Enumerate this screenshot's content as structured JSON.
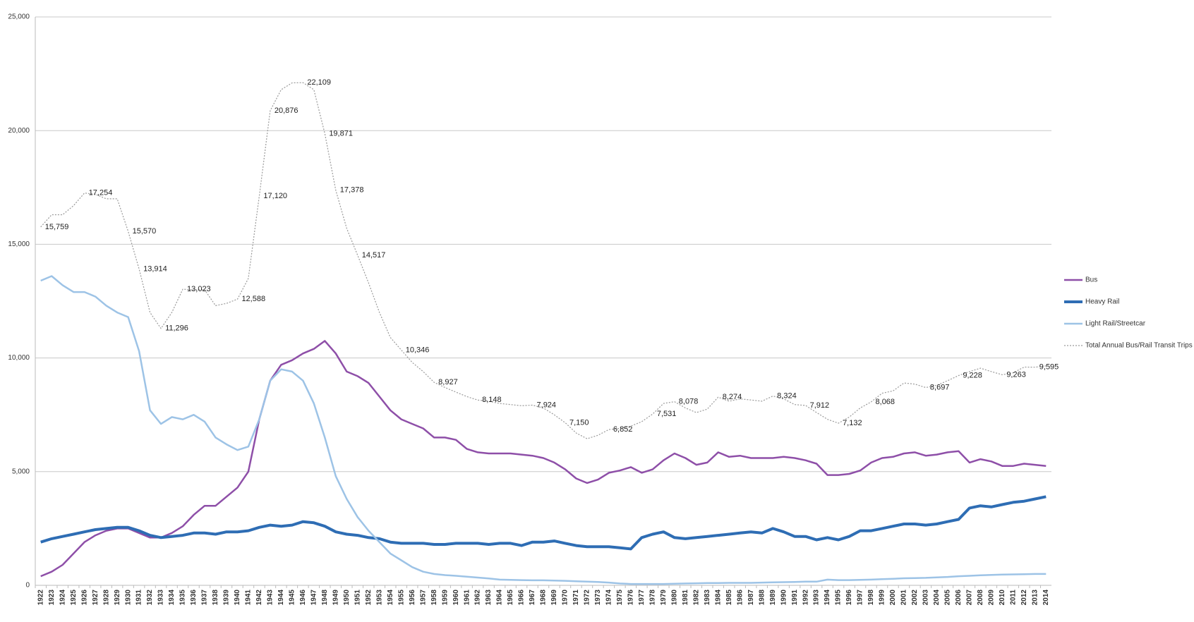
{
  "chart_data": {
    "type": "line",
    "grid": true,
    "legend": "right",
    "categories": [
      "1922",
      "1923",
      "1924",
      "1925",
      "1926",
      "1927",
      "1928",
      "1929",
      "1930",
      "1931",
      "1932",
      "1933",
      "1934",
      "1935",
      "1936",
      "1937",
      "1938",
      "1939",
      "1940",
      "1941",
      "1942",
      "1943",
      "1944",
      "1945",
      "1946",
      "1947",
      "1948",
      "1949",
      "1950",
      "1951",
      "1952",
      "1953",
      "1954",
      "1955",
      "1956",
      "1957",
      "1958",
      "1959",
      "1960",
      "1961",
      "1962",
      "1963",
      "1964",
      "1965",
      "1966",
      "1967",
      "1968",
      "1969",
      "1970",
      "1971",
      "1972",
      "1973",
      "1974",
      "1975",
      "1976",
      "1977",
      "1978",
      "1979",
      "1980",
      "1981",
      "1982",
      "1983",
      "1984",
      "1985",
      "1986",
      "1987",
      "1988",
      "1989",
      "1990",
      "1991",
      "1992",
      "1993",
      "1994",
      "1995",
      "1996",
      "1997",
      "1998",
      "1999",
      "2000",
      "2001",
      "2002",
      "2003",
      "2004",
      "2005",
      "2006",
      "2007",
      "2008",
      "2009",
      "2010",
      "2011",
      "2012",
      "2013",
      "2014"
    ],
    "ylim": [
      0,
      25000
    ],
    "yticks": [
      0,
      {
        "value": 5000,
        "label": "5,000"
      },
      {
        "value": 10000,
        "label": "10,000"
      },
      {
        "value": 15000,
        "label": "15,000"
      },
      {
        "value": 20000,
        "label": "20,000"
      },
      {
        "value": 25000,
        "label": "25,000"
      }
    ],
    "series": [
      {
        "name": "Bus",
        "color": "#8e4fa8",
        "style": "solid",
        "values": [
          400,
          600,
          900,
          1400,
          1900,
          2200,
          2400,
          2500,
          2500,
          2300,
          2100,
          2100,
          2300,
          2600,
          3100,
          3500,
          3500,
          3900,
          4300,
          5000,
          7300,
          9000,
          9700,
          9900,
          10200,
          10400,
          10750,
          10200,
          9400,
          9200,
          8900,
          8300,
          7700,
          7300,
          7100,
          6900,
          6500,
          6500,
          6400,
          6000,
          5850,
          5800,
          5800,
          5800,
          5750,
          5700,
          5600,
          5400,
          5100,
          4700,
          4500,
          4650,
          4950,
          5050,
          5200,
          4950,
          5100,
          5500,
          5800,
          5600,
          5300,
          5400,
          5850,
          5650,
          5700,
          5600,
          5600,
          5600,
          5650,
          5600,
          5500,
          5350,
          4850,
          4850,
          4900,
          5050,
          5400,
          5600,
          5650,
          5800,
          5850,
          5700,
          5750,
          5850,
          5900,
          5400,
          5550,
          5450,
          5250,
          5250,
          5350,
          5300,
          5250
        ]
      },
      {
        "name": "Heavy Rail",
        "color": "#2e6db4",
        "style": "thick",
        "values": [
          1900,
          2050,
          2150,
          2250,
          2350,
          2450,
          2500,
          2550,
          2550,
          2400,
          2200,
          2100,
          2150,
          2200,
          2300,
          2300,
          2250,
          2350,
          2350,
          2400,
          2550,
          2650,
          2600,
          2650,
          2800,
          2750,
          2600,
          2350,
          2250,
          2200,
          2100,
          2050,
          1900,
          1850,
          1850,
          1850,
          1800,
          1800,
          1850,
          1850,
          1850,
          1800,
          1850,
          1850,
          1750,
          1900,
          1900,
          1950,
          1850,
          1750,
          1700,
          1700,
          1700,
          1650,
          1600,
          2100,
          2250,
          2350,
          2100,
          2050,
          2100,
          2150,
          2200,
          2250,
          2300,
          2350,
          2300,
          2500,
          2350,
          2150,
          2150,
          2000,
          2100,
          2000,
          2150,
          2400,
          2400,
          2500,
          2600,
          2700,
          2700,
          2650,
          2700,
          2800,
          2900,
          3400,
          3500,
          3450,
          3550,
          3650,
          3700,
          3800,
          3900
        ]
      },
      {
        "name": "Light Rail/Streetcar",
        "color": "#9dc3e6",
        "style": "solid",
        "values": [
          13400,
          13600,
          13200,
          12900,
          12900,
          12700,
          12300,
          12000,
          11800,
          10300,
          7700,
          7100,
          7400,
          7300,
          7500,
          7200,
          6500,
          6200,
          5950,
          6100,
          7300,
          9000,
          9500,
          9400,
          9000,
          8000,
          6500,
          4800,
          3800,
          3000,
          2400,
          1900,
          1400,
          1100,
          800,
          600,
          500,
          450,
          420,
          380,
          340,
          300,
          250,
          240,
          230,
          220,
          220,
          210,
          200,
          180,
          160,
          150,
          120,
          80,
          60,
          60,
          60,
          60,
          70,
          80,
          90,
          100,
          100,
          110,
          110,
          110,
          120,
          130,
          140,
          150,
          160,
          160,
          250,
          230,
          230,
          240,
          250,
          270,
          290,
          310,
          320,
          330,
          350,
          370,
          400,
          420,
          440,
          460,
          470,
          480,
          490,
          500,
          500
        ]
      },
      {
        "name": "Total Annual Bus/Rail Transit Trips",
        "color": "#9a9a9a",
        "style": "dotted",
        "values": [
          15759,
          16300,
          16300,
          16700,
          17254,
          17200,
          17000,
          17000,
          15570,
          13914,
          12000,
          11296,
          12000,
          13023,
          13000,
          13000,
          12300,
          12400,
          12588,
          13500,
          17120,
          20876,
          21800,
          22100,
          22109,
          21800,
          19871,
          17378,
          15700,
          14517,
          13300,
          12000,
          10900,
          10346,
          9800,
          9400,
          8927,
          8700,
          8500,
          8300,
          8148,
          8100,
          8000,
          7950,
          7900,
          7924,
          7800,
          7500,
          7150,
          6700,
          6450,
          6600,
          6852,
          6900,
          7000,
          7200,
          7531,
          8000,
          8078,
          7800,
          7600,
          7750,
          8274,
          8100,
          8200,
          8150,
          8100,
          8324,
          8200,
          7950,
          7912,
          7600,
          7300,
          7132,
          7400,
          7800,
          8068,
          8450,
          8550,
          8900,
          8850,
          8697,
          8800,
          9000,
          9228,
          9400,
          9550,
          9400,
          9263,
          9350,
          9600,
          9595,
          9650
        ],
        "value_labels": [
          "15,759",
          null,
          null,
          null,
          "17,254",
          null,
          null,
          null,
          "15,570",
          "13,914",
          null,
          "11,296",
          null,
          "13,023",
          null,
          null,
          null,
          null,
          "12,588",
          null,
          "17,120",
          "20,876",
          null,
          null,
          "22,109",
          null,
          "19,871",
          "17,378",
          null,
          "14,517",
          null,
          null,
          null,
          "10,346",
          null,
          null,
          "8,927",
          null,
          null,
          null,
          "8,148",
          null,
          null,
          null,
          null,
          "7,924",
          null,
          null,
          "7,150",
          null,
          null,
          null,
          "6,852",
          null,
          null,
          null,
          "7,531",
          null,
          "8,078",
          null,
          null,
          null,
          "8,274",
          null,
          null,
          null,
          null,
          "8,324",
          null,
          null,
          "7,912",
          null,
          null,
          "7,132",
          null,
          null,
          "8,068",
          null,
          null,
          null,
          null,
          "8,697",
          null,
          null,
          "9,228",
          null,
          null,
          null,
          "9,263",
          null,
          null,
          "9,595",
          null
        ]
      }
    ]
  }
}
